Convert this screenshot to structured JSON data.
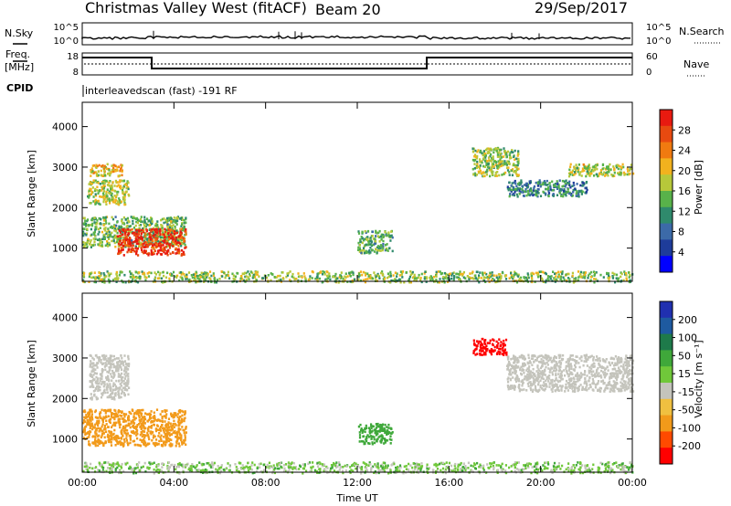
{
  "header": {
    "title": "Christmas Valley West (fitACF)",
    "beam": "Beam 20",
    "date": "29/Sep/2017"
  },
  "noise_panel": {
    "left_label": "N.Sky",
    "right_label": "N.Search",
    "left_ticks": [
      "10^5",
      "10^0"
    ],
    "right_ticks": [
      "10^5",
      "10^0"
    ]
  },
  "freq_panel": {
    "label_line1": "Freq.",
    "label_line2": "[MHz]",
    "cpid_label": "CPID",
    "right_label": "Nave",
    "left_ticks": [
      "18",
      "8"
    ],
    "right_ticks": [
      "60",
      "0"
    ],
    "cpid_text": "interleavedscan (fast) -191 RF"
  },
  "colors": {
    "power": [
      "#0000ff",
      "#1e3c9a",
      "#3c6aa8",
      "#2f8a6c",
      "#58b24a",
      "#b7c83a",
      "#f2b21e",
      "#f07a10",
      "#e84a10",
      "#e81a10"
    ],
    "velocity_neg": [
      "#ff0000",
      "#ff4a00",
      "#f29a1a",
      "#f0c040"
    ],
    "velocity_neutral": "#c4c4bc",
    "velocity_pos": [
      "#70c83a",
      "#3fa83a",
      "#1e7a4a",
      "#1e5aa0",
      "#2030b0"
    ]
  },
  "chart_data": [
    {
      "type": "heatmap",
      "name": "power",
      "ylabel": "Slant Range [km]",
      "xlabel": "",
      "x_ticks": [
        "00:00",
        "04:00",
        "08:00",
        "12:00",
        "16:00",
        "20:00",
        "00:00"
      ],
      "xlim_hours": [
        0,
        24
      ],
      "ylim_km": [
        180,
        4600
      ],
      "y_ticks": [
        1000,
        2000,
        3000,
        4000
      ],
      "colorbar_label": "Power [dB]",
      "colorbar_ticks": [
        "4",
        "8",
        "12",
        "16",
        "20",
        "24",
        "28"
      ],
      "regions": [
        {
          "t": [
            0.0,
            4.5
          ],
          "r": [
            1050,
            1800
          ],
          "level": 0.45
        },
        {
          "t": [
            1.5,
            4.5
          ],
          "r": [
            850,
            1500
          ],
          "level": 0.95
        },
        {
          "t": [
            0.2,
            2.0
          ],
          "r": [
            2100,
            2700
          ],
          "level": 0.55
        },
        {
          "t": [
            0.3,
            1.8
          ],
          "r": [
            2800,
            3100
          ],
          "level": 0.65
        },
        {
          "t": [
            12.0,
            13.5
          ],
          "r": [
            900,
            1450
          ],
          "level": 0.4
        },
        {
          "t": [
            17.0,
            19.0
          ],
          "r": [
            2800,
            3500
          ],
          "level": 0.5
        },
        {
          "t": [
            18.5,
            22.0
          ],
          "r": [
            2300,
            2700
          ],
          "level": 0.3
        },
        {
          "t": [
            21.2,
            24.0
          ],
          "r": [
            2800,
            3100
          ],
          "level": 0.55
        },
        {
          "t": [
            0.0,
            24.0
          ],
          "r": [
            180,
            450
          ],
          "level": 0.5
        }
      ]
    },
    {
      "type": "heatmap",
      "name": "velocity",
      "ylabel": "Slant Range [km]",
      "xlabel": "Time UT",
      "x_ticks": [
        "00:00",
        "04:00",
        "08:00",
        "12:00",
        "16:00",
        "20:00",
        "00:00"
      ],
      "xlim_hours": [
        0,
        24
      ],
      "ylim_km": [
        180,
        4600
      ],
      "y_ticks": [
        1000,
        2000,
        3000,
        4000
      ],
      "colorbar_label": "Velocity [m s⁻¹]",
      "colorbar_ticks": [
        "200",
        "100",
        "50",
        "15",
        "-15",
        "-50",
        "-100",
        "-200"
      ],
      "regions": [
        {
          "t": [
            0.0,
            4.5
          ],
          "r": [
            850,
            1750
          ],
          "vel": -50
        },
        {
          "t": [
            0.3,
            2.0
          ],
          "r": [
            2000,
            3100
          ],
          "vel": 0
        },
        {
          "t": [
            12.0,
            13.5
          ],
          "r": [
            900,
            1400
          ],
          "vel": 50
        },
        {
          "t": [
            17.0,
            18.5
          ],
          "r": [
            3100,
            3500
          ],
          "vel": -200
        },
        {
          "t": [
            18.5,
            24.0
          ],
          "r": [
            2200,
            3100
          ],
          "vel": 0
        },
        {
          "t": [
            0.0,
            24.0
          ],
          "r": [
            180,
            450
          ],
          "vel": 20
        }
      ]
    }
  ]
}
